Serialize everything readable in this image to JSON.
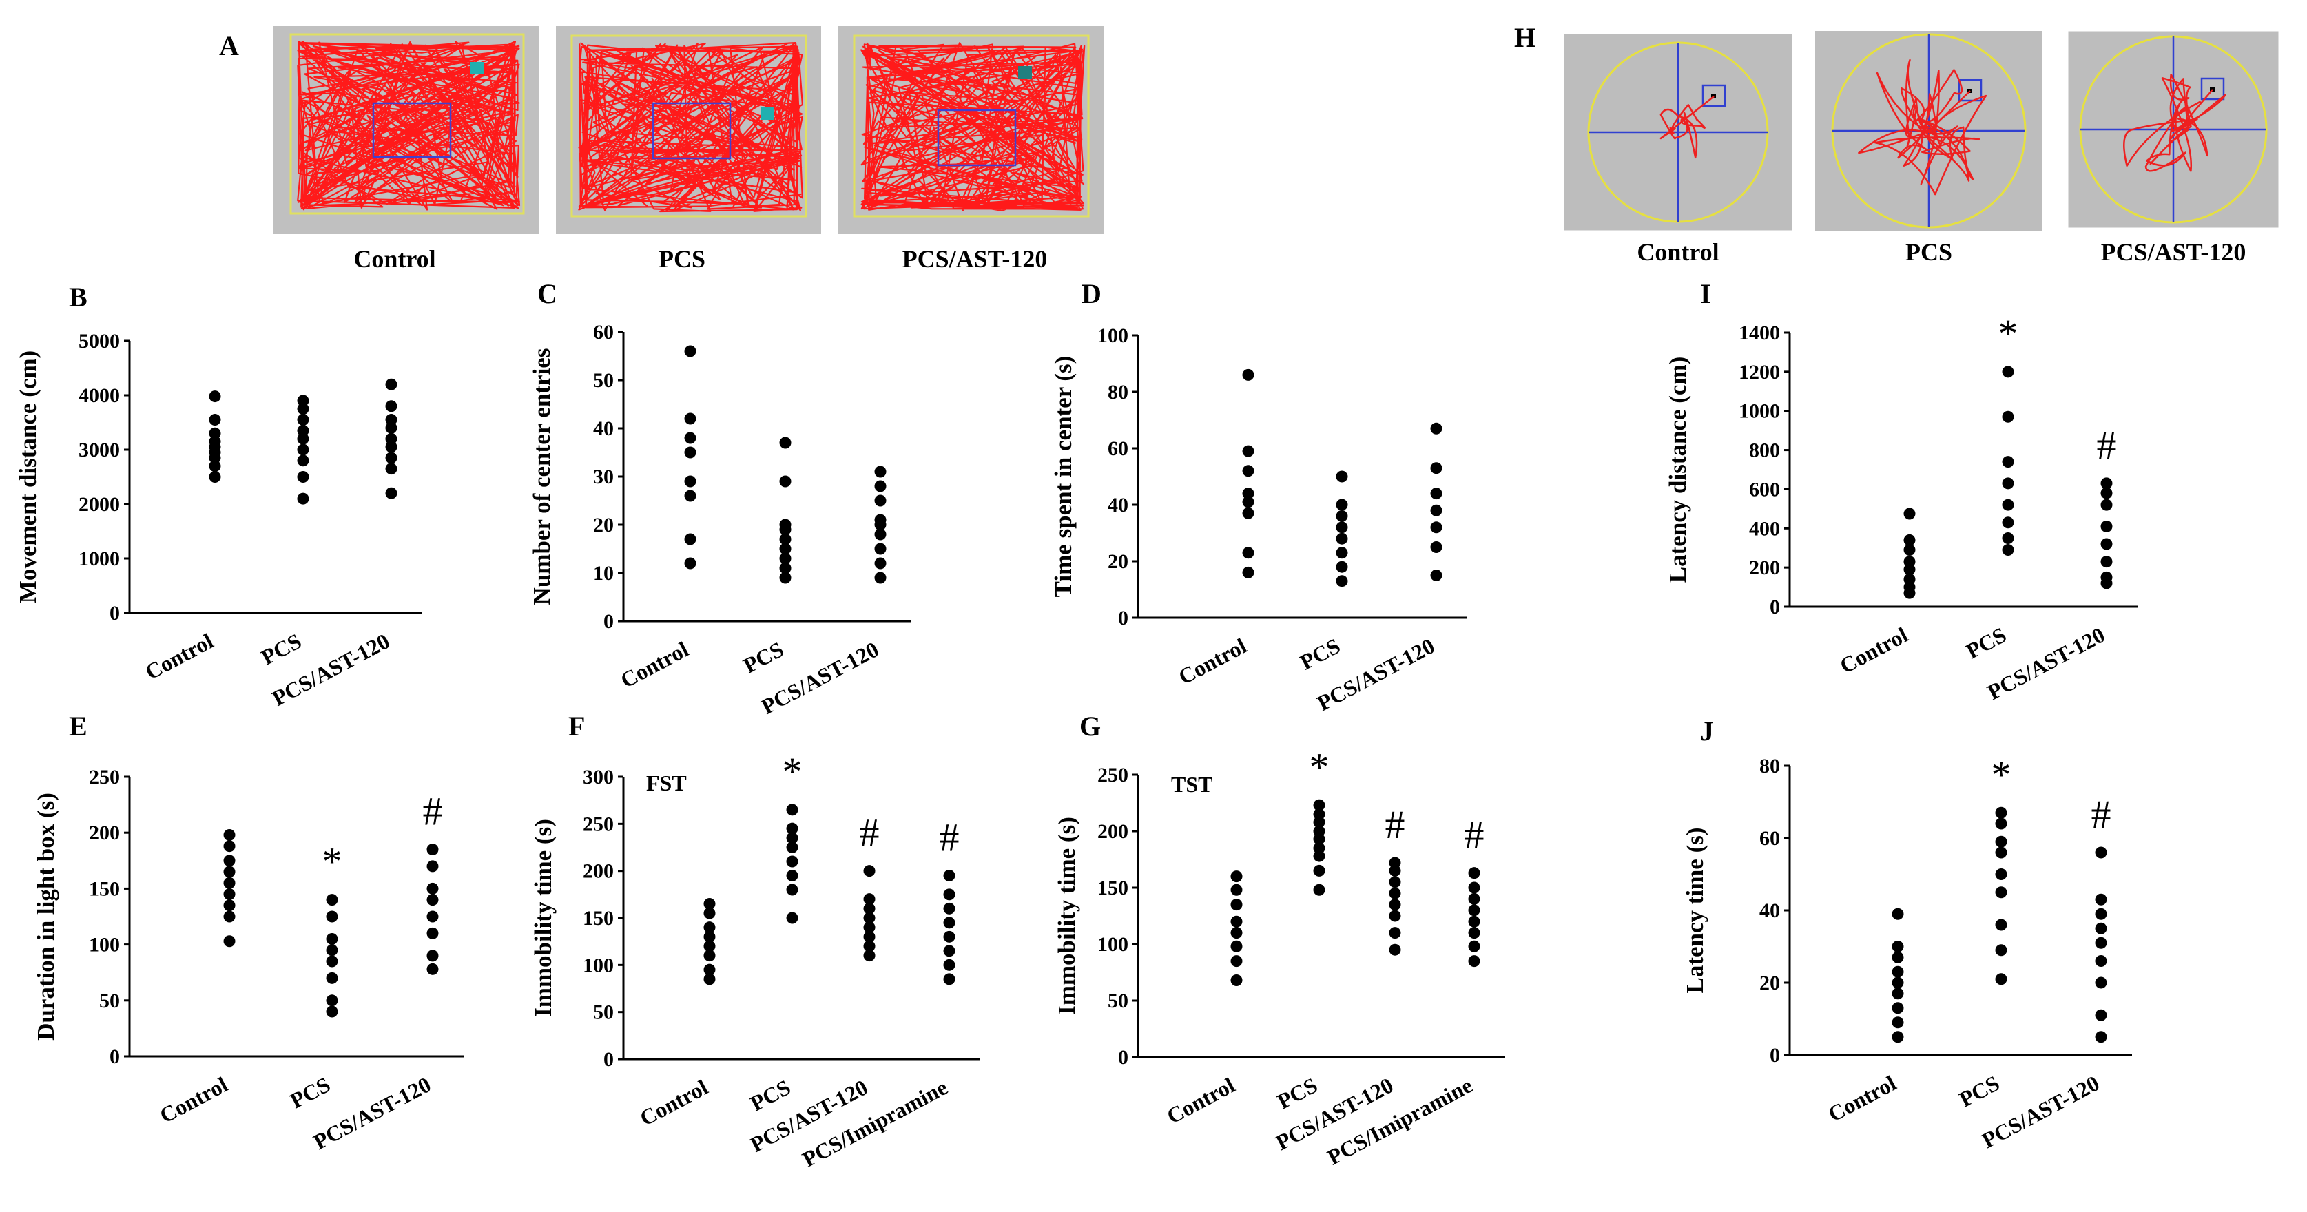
{
  "chart_data": {
    "open_field_images": {
      "letter": "A",
      "captions": [
        "Control",
        "PCS",
        "PCS/AST-120"
      ],
      "colors": {
        "background": "#c0c0c0",
        "trace": "#ff1a1a",
        "arena": "#e0e060",
        "center": "#4040d0"
      }
    },
    "water_maze_images": {
      "letter": "H",
      "captions": [
        "Control",
        "PCS",
        "PCS/AST-120"
      ],
      "colors": {
        "background": "#bdbdbd",
        "trace": "#ee2020",
        "pool": "#e6e040",
        "axes": "#3040d0"
      }
    },
    "panels": [
      {
        "letter": "B",
        "type": "scatter",
        "ylabel": "Movement distance (cm)",
        "ylim": [
          0,
          5000
        ],
        "yticks": [
          0,
          1000,
          2000,
          3000,
          4000,
          5000
        ],
        "categories": [
          "Control",
          "PCS",
          "PCS/AST-120"
        ],
        "sig_marks": [
          "",
          "",
          ""
        ],
        "series": [
          {
            "name": "Control",
            "values": [
              2500,
              2700,
              2850,
              2950,
              3050,
              3150,
              3300,
              3550,
              3980
            ]
          },
          {
            "name": "PCS",
            "values": [
              2100,
              2500,
              2800,
              3000,
              3200,
              3350,
              3550,
              3750,
              3900
            ]
          },
          {
            "name": "PCS/AST-120",
            "values": [
              2200,
              2650,
              2850,
              3050,
              3200,
              3400,
              3550,
              3800,
              4200
            ]
          }
        ]
      },
      {
        "letter": "C",
        "type": "scatter",
        "ylabel": "Number of center entries",
        "ylim": [
          0,
          60
        ],
        "yticks": [
          0,
          10,
          20,
          30,
          40,
          50,
          60
        ],
        "categories": [
          "Control",
          "PCS",
          "PCS/AST-120"
        ],
        "sig_marks": [
          "",
          "",
          ""
        ],
        "series": [
          {
            "name": "Control",
            "values": [
              12,
              17,
              26,
              29,
              35,
              38,
              42,
              56
            ]
          },
          {
            "name": "PCS",
            "values": [
              9,
              11,
              13,
              15,
              17,
              19,
              20,
              29,
              37
            ]
          },
          {
            "name": "PCS/AST-120",
            "values": [
              9,
              12,
              15,
              18,
              20,
              21,
              25,
              28,
              31
            ]
          }
        ]
      },
      {
        "letter": "D",
        "type": "scatter",
        "ylabel": "Time spent in center (s)",
        "ylim": [
          0,
          100
        ],
        "yticks": [
          0,
          20,
          40,
          60,
          80,
          100
        ],
        "categories": [
          "Control",
          "PCS",
          "PCS/AST-120"
        ],
        "sig_marks": [
          "",
          "",
          ""
        ],
        "series": [
          {
            "name": "Control",
            "values": [
              16,
              23,
              37,
              41,
              44,
              52,
              59,
              86
            ]
          },
          {
            "name": "PCS",
            "values": [
              13,
              18,
              23,
              28,
              32,
              36,
              40,
              50
            ]
          },
          {
            "name": "PCS/AST-120",
            "values": [
              15,
              25,
              32,
              38,
              44,
              53,
              67
            ]
          }
        ]
      },
      {
        "letter": "E",
        "type": "scatter",
        "ylabel": "Duration in light box (s)",
        "ylim": [
          0,
          250
        ],
        "yticks": [
          0,
          50,
          100,
          150,
          200,
          250
        ],
        "categories": [
          "Control",
          "PCS",
          "PCS/AST-120"
        ],
        "sig_marks": [
          "",
          "*",
          "#"
        ],
        "series": [
          {
            "name": "Control",
            "values": [
              103,
              125,
              135,
              145,
              155,
              165,
              175,
              188,
              198
            ]
          },
          {
            "name": "PCS",
            "values": [
              40,
              50,
              70,
              85,
              95,
              105,
              125,
              140
            ]
          },
          {
            "name": "PCS/AST-120",
            "values": [
              78,
              90,
              110,
              125,
              140,
              150,
              170,
              185
            ]
          }
        ]
      },
      {
        "letter": "F",
        "type": "scatter",
        "note": "FST",
        "ylabel": "Immobility time (s)",
        "ylim": [
          0,
          300
        ],
        "yticks": [
          0,
          50,
          100,
          150,
          200,
          250,
          300
        ],
        "categories": [
          "Control",
          "PCS",
          "PCS/AST-120",
          "PCS/Imipramine"
        ],
        "sig_marks": [
          "",
          "*",
          "#",
          "#"
        ],
        "series": [
          {
            "name": "Control",
            "values": [
              85,
              95,
              110,
              120,
              130,
              140,
              155,
              165
            ]
          },
          {
            "name": "PCS",
            "values": [
              150,
              180,
              195,
              210,
              225,
              235,
              245,
              265
            ]
          },
          {
            "name": "PCS/AST-120",
            "values": [
              110,
              120,
              130,
              140,
              150,
              160,
              170,
              200
            ]
          },
          {
            "name": "PCS/Imipramine",
            "values": [
              85,
              100,
              115,
              130,
              145,
              160,
              175,
              195
            ]
          }
        ]
      },
      {
        "letter": "G",
        "type": "scatter",
        "note": "TST",
        "ylabel": "Immobility time (s)",
        "ylim": [
          0,
          250
        ],
        "yticks": [
          0,
          50,
          100,
          150,
          200,
          250
        ],
        "categories": [
          "Control",
          "PCS",
          "PCS/AST-120",
          "PCS/Imipramine"
        ],
        "sig_marks": [
          "",
          "*",
          "#",
          "#"
        ],
        "series": [
          {
            "name": "Control",
            "values": [
              68,
              85,
              98,
              110,
              120,
              135,
              148,
              160
            ]
          },
          {
            "name": "PCS",
            "values": [
              148,
              165,
              178,
              185,
              193,
              200,
              208,
              215,
              223
            ]
          },
          {
            "name": "PCS/AST-120",
            "values": [
              95,
              110,
              125,
              135,
              145,
              155,
              165,
              172
            ]
          },
          {
            "name": "PCS/Imipramine",
            "values": [
              85,
              98,
              110,
              120,
              130,
              140,
              150,
              163
            ]
          }
        ]
      },
      {
        "letter": "I",
        "type": "scatter",
        "ylabel": "Latency distance (cm)",
        "ylim": [
          0,
          1400
        ],
        "yticks": [
          0,
          200,
          400,
          600,
          800,
          1000,
          1200,
          1400
        ],
        "categories": [
          "Control",
          "PCS",
          "PCS/AST-120"
        ],
        "sig_marks": [
          "",
          "*",
          "#"
        ],
        "series": [
          {
            "name": "Control",
            "values": [
              70,
              100,
              140,
              190,
              230,
              290,
              340,
              475
            ]
          },
          {
            "name": "PCS",
            "values": [
              290,
              350,
              430,
              520,
              630,
              740,
              970,
              1200
            ]
          },
          {
            "name": "PCS/AST-120",
            "values": [
              120,
              150,
              230,
              320,
              410,
              520,
              580,
              630
            ]
          }
        ]
      },
      {
        "letter": "J",
        "type": "scatter",
        "ylabel": "Latency time (s)",
        "ylim": [
          0,
          80
        ],
        "yticks": [
          0,
          20,
          40,
          60,
          80
        ],
        "categories": [
          "Control",
          "PCS",
          "PCS/AST-120"
        ],
        "sig_marks": [
          "",
          "*",
          "#"
        ],
        "series": [
          {
            "name": "Control",
            "values": [
              5,
              9,
              13,
              17,
              20,
              23,
              27,
              30,
              39
            ]
          },
          {
            "name": "PCS",
            "values": [
              21,
              29,
              36,
              45,
              50,
              56,
              59,
              64,
              67
            ]
          },
          {
            "name": "PCS/AST-120",
            "values": [
              5,
              11,
              20,
              26,
              31,
              35,
              39,
              43,
              56
            ]
          }
        ]
      }
    ]
  }
}
